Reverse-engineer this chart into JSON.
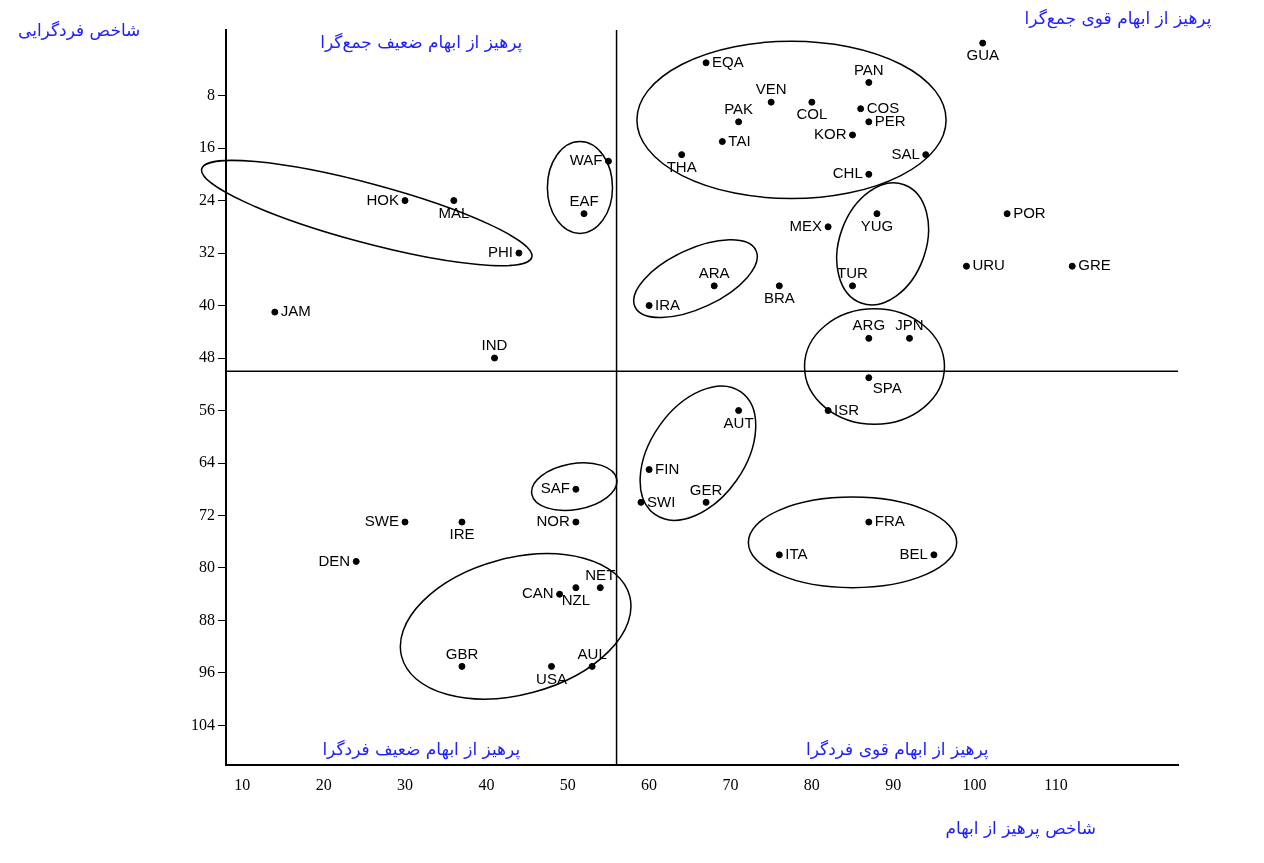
{
  "chart_data": {
    "type": "scatter",
    "xlabel": "شاخص پرهیز از ابهام",
    "ylabel": "شاخص فردگرایی",
    "annotations": [
      "پرهیز از ابهام ضعیف جمع‌گرا",
      "پرهیز از ابهام قوی جمع‌گرا",
      "پرهیز از ابهام ضعیف فردگرا",
      "پرهیز از ابهام قوی فردگرا"
    ],
    "series": [
      {
        "color": "#000000",
        "x": [
          67,
          87,
          75,
          80,
          71,
          86,
          87,
          69,
          85,
          94,
          64,
          87,
          101,
          104,
          82,
          88,
          99,
          112,
          85,
          68,
          76,
          60,
          87,
          92,
          87,
          55,
          52,
          30,
          36,
          44,
          14,
          41,
          82,
          71,
          60,
          59,
          67,
          87,
          76,
          95,
          51,
          30,
          37,
          51,
          24,
          49,
          51,
          54,
          37,
          48,
          53
        ],
        "values": [
          3,
          6,
          9,
          9,
          12,
          10,
          12,
          15,
          14,
          17,
          17,
          20,
          0,
          26,
          28,
          26,
          34,
          34,
          37,
          37,
          37,
          40,
          45,
          45,
          51,
          18,
          26,
          24,
          24,
          32,
          41,
          48,
          56,
          56,
          65,
          70,
          70,
          73,
          78,
          78,
          68,
          73,
          73,
          73,
          79,
          84,
          83,
          83,
          95,
          95,
          95
        ],
        "value_labels": [
          "EQA",
          "PAN",
          "VEN",
          "COL",
          "PAK",
          "COS",
          "PER",
          "TAI",
          "KOR",
          "SAL",
          "THA",
          "CHL",
          "GUA",
          "POR",
          "MEX",
          "YUG",
          "URU",
          "GRE",
          "TUR",
          "ARA",
          "BRA",
          "IRA",
          "ARG",
          "JPN",
          "SPA",
          "WAF",
          "EAF",
          "HOK",
          "MAL",
          "PHI",
          "JAM",
          "IND",
          "ISR",
          "AUT",
          "FIN",
          "SWI",
          "GER",
          "FRA",
          "ITA",
          "BEL",
          "SAF",
          "SWE",
          "IRE",
          "NOR",
          "DEN",
          "CAN",
          "NZL",
          "NET",
          "GBR",
          "USA",
          "AUL"
        ]
      }
    ],
    "xlim": [
      8,
      125
    ],
    "ylim": [
      110,
      -2
    ],
    "xticks": [
      10,
      20,
      30,
      40,
      50,
      60,
      70,
      80,
      90,
      100,
      110
    ],
    "yticks": [
      8,
      16,
      24,
      32,
      40,
      48,
      56,
      64,
      72,
      80,
      88,
      96,
      104
    ],
    "ref_lines": [
      {
        "axis": "x",
        "value": 56
      },
      {
        "axis": "y",
        "value": 50
      }
    ],
    "grid": false,
    "legend": false,
    "marker": "circle"
  }
}
